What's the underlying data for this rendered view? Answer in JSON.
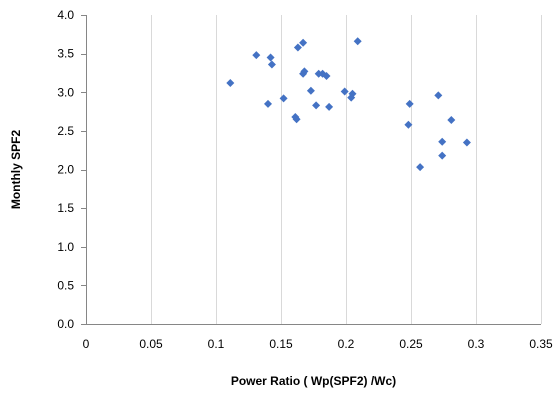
{
  "chart_data": {
    "type": "scatter",
    "title": "",
    "xlabel": "Power Ratio ( Wp(SPF2) /Wc)",
    "ylabel": "Monthly SPF2",
    "xlim": [
      0,
      0.35
    ],
    "ylim": [
      0,
      4.0
    ],
    "x_ticks": [
      "0",
      "0.05",
      "0.1",
      "0.15",
      "0.2",
      "0.25",
      "0.3",
      "0.35"
    ],
    "y_ticks": [
      "0.0",
      "0.5",
      "1.0",
      "1.5",
      "2.0",
      "2.5",
      "3.0",
      "3.5",
      "4.0"
    ],
    "grid": {
      "vertical": true,
      "horizontal": false
    },
    "legend": "none",
    "marker": "diamond",
    "colors": {
      "marker": "#4472C4",
      "grid": "#D9D9D9",
      "axis": "#868686"
    },
    "series": [
      {
        "points": [
          [
            0.111,
            3.12
          ],
          [
            0.131,
            3.48
          ],
          [
            0.14,
            2.85
          ],
          [
            0.142,
            3.45
          ],
          [
            0.143,
            3.36
          ],
          [
            0.152,
            2.92
          ],
          [
            0.161,
            2.68
          ],
          [
            0.162,
            2.65
          ],
          [
            0.163,
            3.58
          ],
          [
            0.167,
            3.64
          ],
          [
            0.167,
            3.24
          ],
          [
            0.168,
            3.27
          ],
          [
            0.173,
            3.02
          ],
          [
            0.177,
            2.83
          ],
          [
            0.179,
            3.24
          ],
          [
            0.182,
            3.24
          ],
          [
            0.185,
            3.21
          ],
          [
            0.187,
            2.81
          ],
          [
            0.199,
            3.01
          ],
          [
            0.204,
            2.93
          ],
          [
            0.205,
            2.98
          ],
          [
            0.209,
            3.66
          ],
          [
            0.248,
            2.58
          ],
          [
            0.249,
            2.85
          ],
          [
            0.257,
            2.03
          ],
          [
            0.271,
            2.96
          ],
          [
            0.274,
            2.36
          ],
          [
            0.274,
            2.18
          ],
          [
            0.281,
            2.64
          ],
          [
            0.293,
            2.35
          ]
        ]
      }
    ]
  }
}
